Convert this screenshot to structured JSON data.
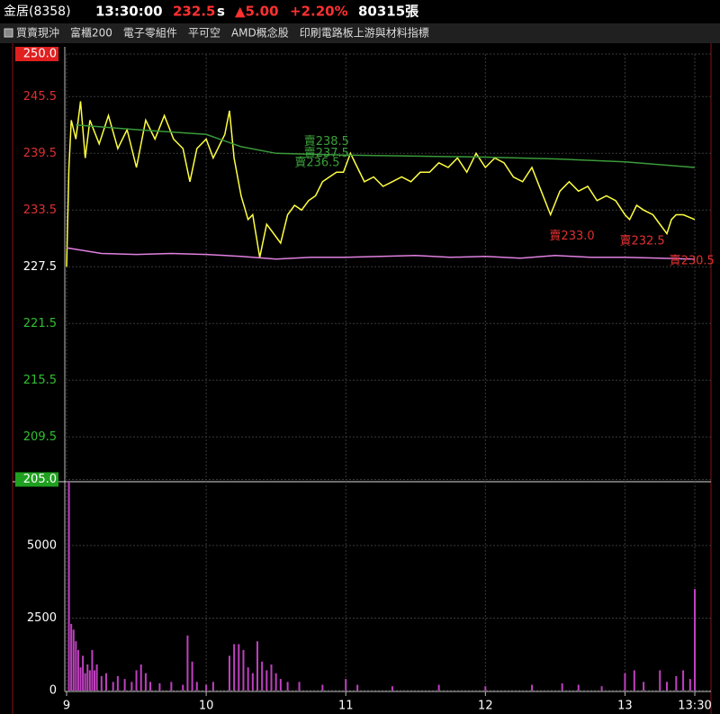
{
  "header": {
    "name": "金居(8358)",
    "time": "13:30:00",
    "price": "232.5",
    "flag": "s",
    "change": "▲5.00",
    "change_pct": "+2.20%",
    "volume": "80315張"
  },
  "tags": [
    "買賣現沖",
    "富櫃200",
    "電子零組件",
    "平可空",
    "AMD概念股",
    "印刷電路板上游與材料指標"
  ],
  "chart_data": [
    {
      "type": "line",
      "xlim": [
        0,
        270
      ],
      "ylim": [
        205,
        250
      ],
      "yticks": [
        {
          "value": 250,
          "label": "250.0"
        },
        245.5,
        239.5,
        233.5,
        227.5,
        221.5,
        215.5,
        209.5,
        {
          "value": 205,
          "label": "205.0"
        }
      ],
      "ytick_colors": [
        "box:#e02020",
        "#e03030",
        "#e03030",
        "#e03030",
        "#ffffff",
        "#30c030",
        "#30c030",
        "#30c030",
        "box:#20a020"
      ],
      "grid": true,
      "series": [
        {
          "color": "#ffff40",
          "x": [
            0,
            1,
            2,
            4,
            6,
            8,
            10,
            14,
            18,
            22,
            26,
            30,
            34,
            38,
            42,
            46,
            50,
            53,
            56,
            60,
            63,
            66,
            68,
            70,
            72,
            75,
            78,
            80,
            83,
            86,
            89,
            92,
            95,
            98,
            101,
            104,
            107,
            110,
            113,
            116,
            119,
            122,
            125,
            128,
            132,
            136,
            140,
            144,
            148,
            152,
            156,
            160,
            164,
            168,
            172,
            176,
            180,
            184,
            188,
            192,
            196,
            200,
            204,
            208,
            212,
            216,
            220,
            224,
            228,
            232,
            236,
            240,
            242,
            245,
            248,
            252,
            255,
            258,
            260,
            262,
            265,
            270
          ],
          "values": [
            227.5,
            238,
            243,
            241,
            245,
            239,
            243,
            240.5,
            243.5,
            240,
            242,
            238,
            243,
            241,
            243.5,
            241,
            240,
            236.5,
            240,
            241,
            239,
            240.5,
            241.5,
            244,
            239,
            235,
            232.5,
            233,
            228.5,
            232,
            231,
            230,
            233,
            234,
            233.5,
            234.5,
            235,
            236.5,
            237,
            237.5,
            237.5,
            239.5,
            238,
            236.5,
            237,
            236,
            236.5,
            237,
            236.5,
            237.5,
            237.5,
            238.5,
            238,
            239,
            237.5,
            239.5,
            238,
            239,
            238.5,
            237,
            236.5,
            238,
            235.5,
            233,
            235.5,
            236.5,
            235.5,
            236,
            234.5,
            235,
            234.5,
            233,
            232.5,
            234,
            233.5,
            233,
            232,
            231,
            232.5,
            233,
            233,
            232.5
          ]
        },
        {
          "color": "#3a9a3a",
          "x": [
            4,
            30,
            60,
            75,
            90,
            120,
            150,
            180,
            210,
            240,
            270
          ],
          "values": [
            242.5,
            242,
            241.5,
            240.2,
            239.5,
            239.3,
            239.2,
            239.1,
            238.9,
            238.6,
            238
          ]
        },
        {
          "color": "#e080e0",
          "x": [
            0,
            15,
            30,
            45,
            60,
            75,
            90,
            105,
            120,
            135,
            150,
            165,
            180,
            195,
            210,
            225,
            240,
            255,
            270
          ],
          "values": [
            229.5,
            228.9,
            228.8,
            228.9,
            228.8,
            228.6,
            228.3,
            228.5,
            228.5,
            228.6,
            228.7,
            228.5,
            228.6,
            228.4,
            228.7,
            228.5,
            228.5,
            228.4,
            228.3
          ]
        }
      ],
      "annotations": [
        {
          "text": "賣238.5",
          "x": 102,
          "y": 240.7,
          "color": "#3aa03a"
        },
        {
          "text": "賣237.5",
          "x": 102,
          "y": 239.5,
          "color": "#3aa03a"
        },
        {
          "text": "賣236.5",
          "x": 98,
          "y": 238.5,
          "color": "#3aa03a"
        },
        {
          "text": "賣233.0",
          "x": 207.5,
          "y": 230.7,
          "color": "#e03030"
        },
        {
          "text": "賣232.5",
          "x": 237.7,
          "y": 230.2,
          "color": "#e03030"
        },
        {
          "text": "賣230.5",
          "x": 259,
          "y": 228.1,
          "color": "#e03030"
        }
      ]
    },
    {
      "type": "bar",
      "xlim": [
        0,
        270
      ],
      "ylim": [
        0,
        7200
      ],
      "yticks": [
        0,
        2500,
        5000
      ],
      "xticks": [
        {
          "value": 0,
          "label": "9"
        },
        {
          "value": 60,
          "label": "10"
        },
        {
          "value": 120,
          "label": "11"
        },
        {
          "value": 180,
          "label": "12"
        },
        {
          "value": 240,
          "label": "13"
        },
        {
          "value": 270,
          "label": "13:30"
        }
      ],
      "grid": true,
      "color": "#c040c0",
      "x": [
        1,
        2,
        3,
        4,
        5,
        6,
        7,
        8,
        9,
        10,
        11,
        12,
        13,
        15,
        17,
        20,
        22,
        25,
        28,
        30,
        32,
        34,
        36,
        40,
        45,
        50,
        52,
        54,
        56,
        60,
        63,
        70,
        72,
        74,
        76,
        78,
        80,
        82,
        84,
        86,
        88,
        90,
        92,
        95,
        100,
        110,
        120,
        125,
        140,
        160,
        180,
        200,
        213,
        220,
        230,
        240,
        244,
        248,
        255,
        258,
        262,
        265,
        268,
        270
      ],
      "values": [
        7200,
        2300,
        2100,
        1700,
        1400,
        800,
        1200,
        600,
        900,
        700,
        1400,
        700,
        900,
        500,
        600,
        300,
        500,
        400,
        300,
        700,
        900,
        600,
        300,
        250,
        300,
        200,
        1900,
        1000,
        300,
        200,
        300,
        1200,
        1600,
        1600,
        1400,
        800,
        600,
        1700,
        1000,
        700,
        900,
        600,
        400,
        300,
        300,
        200,
        400,
        200,
        150,
        200,
        150,
        200,
        250,
        200,
        150,
        600,
        700,
        300,
        700,
        300,
        500,
        700,
        400,
        3500
      ]
    }
  ]
}
